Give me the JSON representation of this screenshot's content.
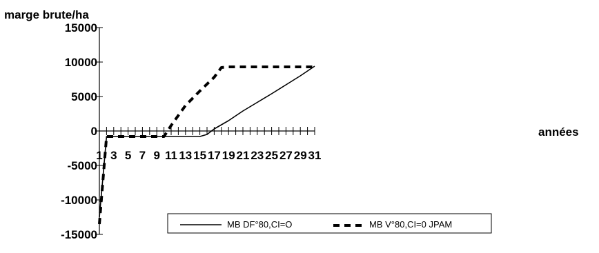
{
  "chart_data": {
    "type": "line",
    "ylabel": "marge brute/ha",
    "xlabel": "années",
    "xlim": [
      1,
      31
    ],
    "ylim": [
      -15000,
      15000
    ],
    "y_ticks": [
      15000,
      10000,
      5000,
      0,
      -5000,
      -10000,
      -15000
    ],
    "x_tick_labels": [
      1,
      3,
      5,
      7,
      9,
      11,
      13,
      15,
      17,
      19,
      21,
      23,
      25,
      27,
      29,
      31
    ],
    "legend_position": "bottom-center",
    "series": [
      {
        "name": "MB DF°80,CI=O",
        "style": "solid",
        "color": "#000000",
        "x": [
          1,
          2,
          15,
          16,
          17,
          19,
          21,
          23,
          25,
          27,
          29,
          31
        ],
        "y": [
          -12500,
          -800,
          -800,
          -500,
          300,
          1500,
          2900,
          4150,
          5400,
          6700,
          8000,
          9400
        ]
      },
      {
        "name": "MB V°80,CI=0 JPAM",
        "style": "dashed",
        "color": "#000000",
        "x": [
          1,
          2,
          10,
          11,
          13,
          15,
          17,
          18,
          19,
          31
        ],
        "y": [
          -13500,
          -800,
          -800,
          800,
          3700,
          5800,
          7800,
          9200,
          9300,
          9300
        ]
      }
    ]
  }
}
